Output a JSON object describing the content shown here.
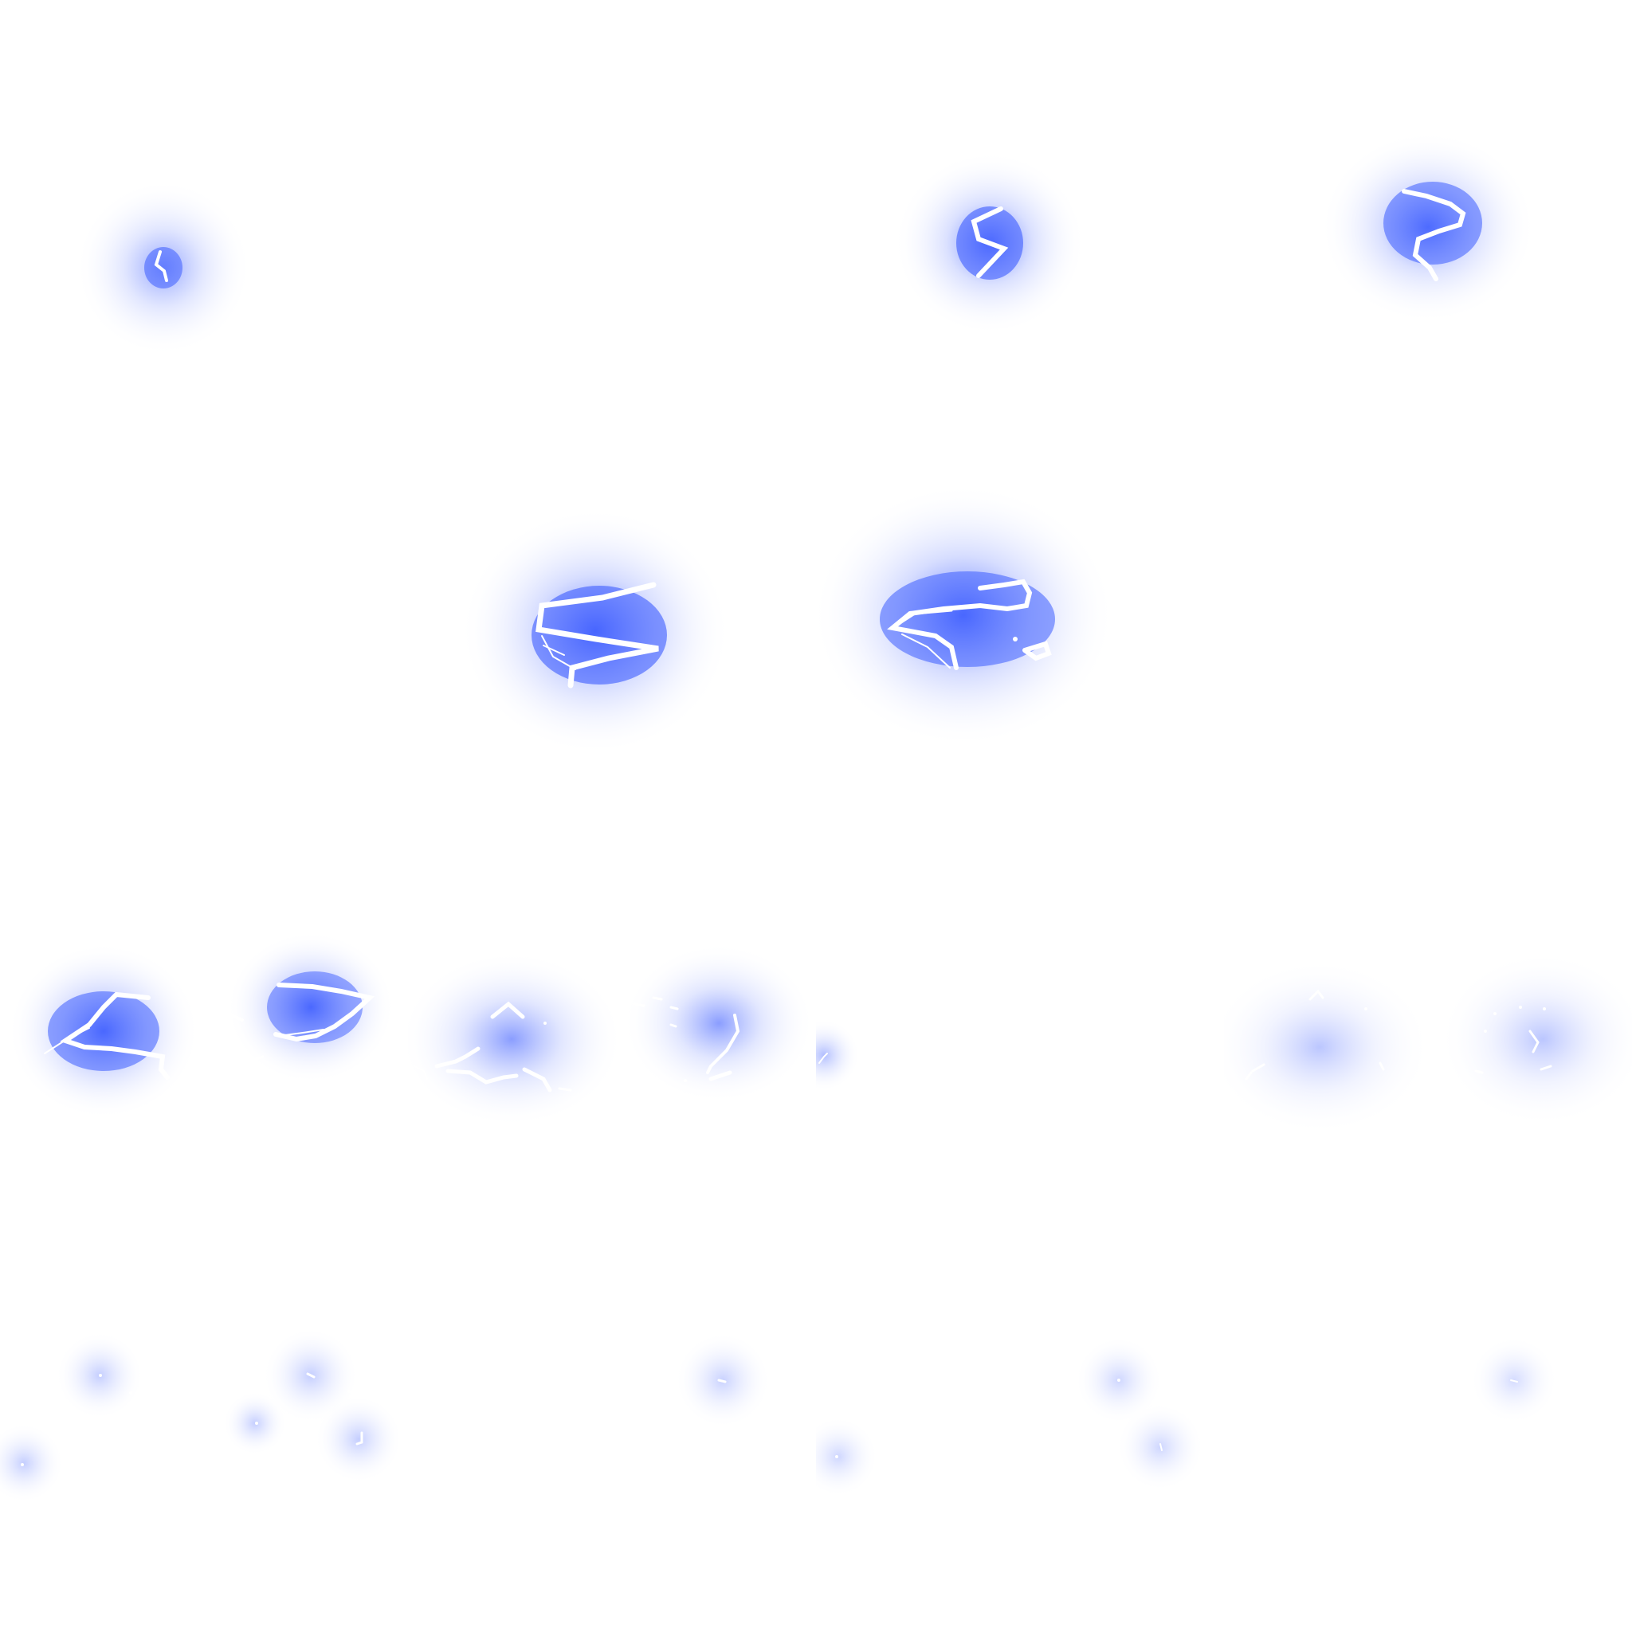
{
  "sprite_sheet": {
    "columns": 4,
    "rows": 4,
    "glow_color": "#3c5cff",
    "core_color": "#ffffff",
    "background_color": "#ffffff",
    "frames": [
      {
        "icon": "lightning-spark-tiny"
      },
      {
        "icon": "empty-frame"
      },
      {
        "icon": "lightning-bolt-s"
      },
      {
        "icon": "lightning-bolt-hook"
      },
      {
        "icon": "empty-frame"
      },
      {
        "icon": "lightning-bolt-z"
      },
      {
        "icon": "lightning-bolt-wide"
      },
      {
        "icon": "empty-frame"
      },
      {
        "icon": "lightning-burst-split"
      },
      {
        "icon": "lightning-burst-scatter"
      },
      {
        "icon": "lightning-fragment-faint"
      },
      {
        "icon": "lightning-fade-sparks"
      },
      {
        "icon": "lightning-fade-dots"
      },
      {
        "icon": "lightning-fade-dot"
      },
      {
        "icon": "lightning-fade-dots-faint"
      },
      {
        "icon": "lightning-fade-dot-last"
      }
    ]
  }
}
